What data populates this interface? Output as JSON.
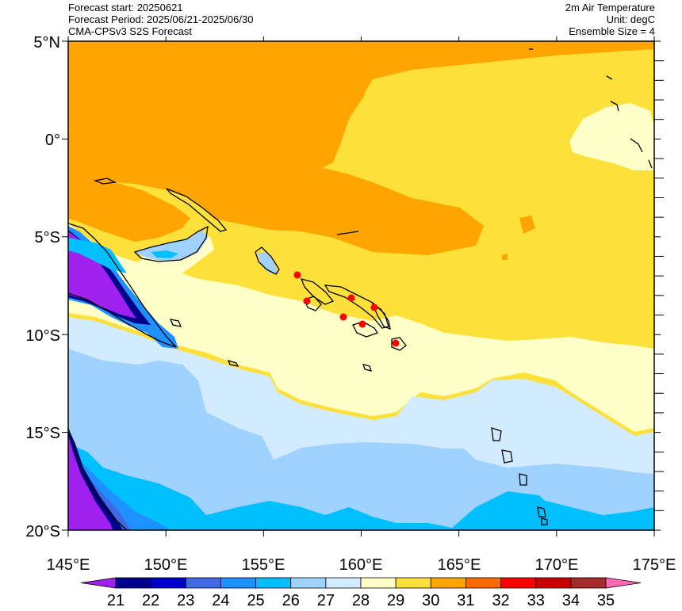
{
  "header": {
    "forecast_start": "Forecast start: 20250621",
    "forecast_period": "Forecast Period: 2025/06/21-2025/06/30",
    "model": "CMA-CPSv3 S2S Forecast",
    "variable": "2m Air Temperature",
    "unit": "Unit: degC",
    "ensemble": "Ensemble Size = 4"
  },
  "map": {
    "lat_ticks": [
      "5°N",
      "0°",
      "5°S",
      "10°S",
      "15°S",
      "20°S"
    ],
    "lon_ticks": [
      "145°E",
      "150°E",
      "155°E",
      "160°E",
      "165°E",
      "170°E",
      "175°E"
    ],
    "region": {
      "lon": [
        145,
        175
      ],
      "lat": [
        -20,
        5
      ]
    }
  },
  "colorbar": {
    "levels": [
      "21",
      "22",
      "23",
      "24",
      "25",
      "26",
      "27",
      "28",
      "29",
      "30",
      "31",
      "32",
      "33",
      "34",
      "35"
    ],
    "colors": [
      "#a020f0",
      "#00008b",
      "#0000cd",
      "#4169e1",
      "#1e90ff",
      "#00bfff",
      "#a0d2ff",
      "#d2ebff",
      "#ffffc8",
      "#fde03a",
      "#ffa500",
      "#ff6a00",
      "#ff0000",
      "#c80000",
      "#a52a2a",
      "#ff69b4"
    ]
  },
  "colors": {
    "c26": "#00bfff",
    "c27": "#a0d2ff",
    "c28": "#d2ebff",
    "c29": "#ffffc8",
    "c30": "#fde03a",
    "c31": "#ffa500",
    "c25": "#1e90ff",
    "c24": "#4169e1",
    "c21": "#a020f0",
    "c22": "#00008b",
    "markers": "#ff0000"
  }
}
